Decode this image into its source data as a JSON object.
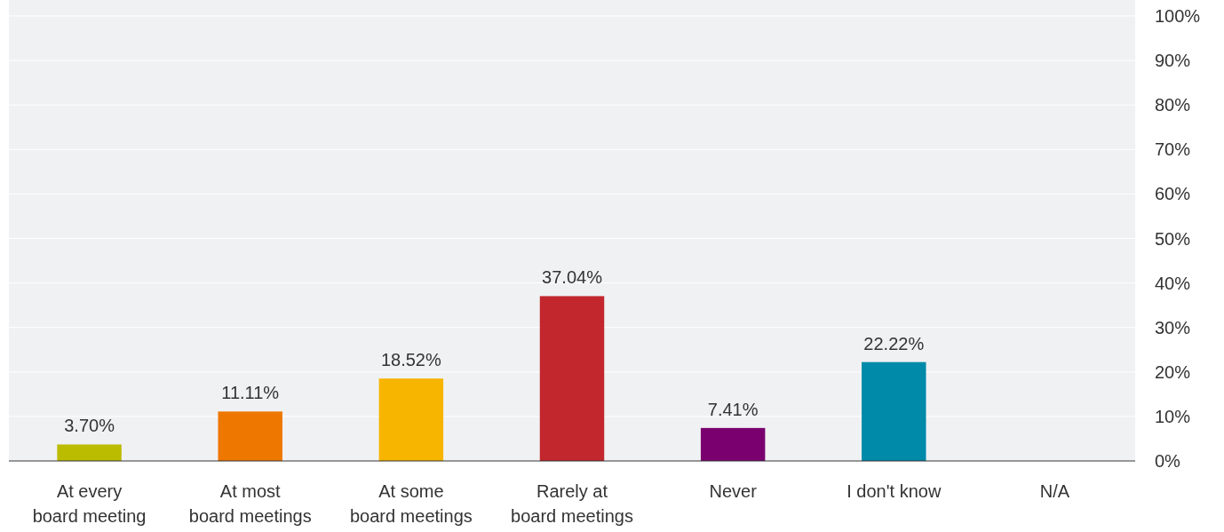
{
  "chart_data": {
    "type": "bar",
    "categories": [
      "At every board meeting",
      "At most board meetings",
      "At some board meetings",
      "Rarely at board meetings",
      "Never",
      "I don't know",
      "N/A"
    ],
    "values": [
      3.7,
      11.11,
      18.52,
      37.04,
      7.41,
      22.22,
      0
    ],
    "colors": [
      "#bbbb00",
      "#ee7700",
      "#f7b500",
      "#c1272d",
      "#7a0070",
      "#008aaa",
      "#888888"
    ],
    "value_labels": [
      "3.70%",
      "11.11%",
      "18.52%",
      "37.04%",
      "7.41%",
      "22.22%",
      null
    ],
    "ylim": [
      0,
      100
    ],
    "yticks": [
      {
        "value": 0,
        "label": "0%"
      },
      {
        "value": 10,
        "label": "10%"
      },
      {
        "value": 20,
        "label": "20%"
      },
      {
        "value": 30,
        "label": "30%"
      },
      {
        "value": 40,
        "label": "40%"
      },
      {
        "value": 50,
        "label": "50%"
      },
      {
        "value": 60,
        "label": "60%"
      },
      {
        "value": 70,
        "label": "70%"
      },
      {
        "value": 80,
        "label": "80%"
      },
      {
        "value": 90,
        "label": "90%"
      },
      {
        "value": 100,
        "label": "100%"
      }
    ],
    "grid": "y"
  }
}
